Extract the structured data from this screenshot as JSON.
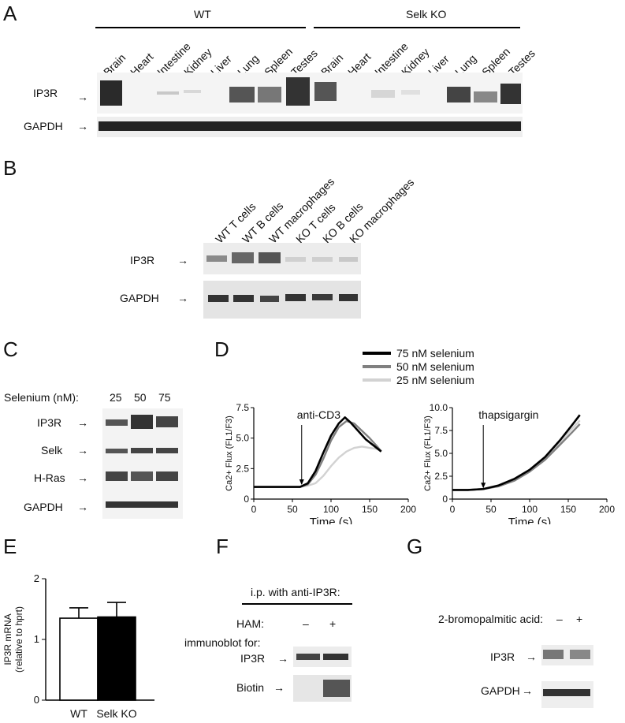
{
  "panels": {
    "a": "A",
    "b": "B",
    "c": "C",
    "d": "D",
    "e": "E",
    "f": "F",
    "g": "G"
  },
  "panel_a": {
    "group_wt": "WT",
    "group_ko": "Selk KO",
    "tissues_wt": [
      "Brain",
      "Heart",
      "Intestine",
      "Kidney",
      "Liver",
      "Lung",
      "Spleen",
      "Testes"
    ],
    "tissues_ko": [
      "Brain",
      "Heart",
      "Intestine",
      "Kidney",
      "Liver",
      "Lung",
      "Spleen",
      "Testes"
    ],
    "row1": "IP3R",
    "row2": "GAPDH"
  },
  "panel_b": {
    "lanes": [
      "WT T cells",
      "WT B cells",
      "WT macrophages",
      "KO T cells",
      "KO B cells",
      "KO macrophages"
    ],
    "row1": "IP3R",
    "row2": "GAPDH"
  },
  "panel_c": {
    "selenium_label": "Selenium (nM):",
    "conc": [
      "25",
      "50",
      "75"
    ],
    "rows": [
      "IP3R",
      "Selk",
      "H-Ras",
      "GAPDH"
    ]
  },
  "panel_d": {
    "legend": [
      "75 nM selenium",
      "50 nM selenium",
      "25 nM selenium"
    ],
    "colors": [
      "#000000",
      "#808080",
      "#d2d2d2"
    ],
    "left_annotation": "anti-CD3",
    "right_annotation": "thapsigargin",
    "ylabel": "Ca2+ Flux (FL1/F3)",
    "xlabel": "Time (s)",
    "left_yticks": [
      "0",
      "2.5",
      "5.0",
      "7.5"
    ],
    "right_yticks": [
      "0",
      "2.5",
      "5.0",
      "7.5",
      "10.0"
    ],
    "xticks": [
      "0",
      "50",
      "100",
      "150",
      "200"
    ]
  },
  "panel_e": {
    "ylabel_1": "IP3R mRNA",
    "ylabel_2": "(relative to hprt)",
    "yticks": [
      "0",
      "1",
      "2"
    ],
    "categories": [
      "WT",
      "Selk KO"
    ]
  },
  "panel_f": {
    "header": "i.p. with anti-IP3R:",
    "ham": "HAM:",
    "minus": "–",
    "plus": "+",
    "immunoblot": "immunoblot for:",
    "row1": "IP3R",
    "row2": "Biotin"
  },
  "panel_g": {
    "label": "2-bromopalmitic acid:",
    "minus": "–",
    "plus": "+",
    "row1": "IP3R",
    "row2": "GAPDH"
  },
  "chart_data": [
    {
      "type": "line",
      "panel": "D-left",
      "xlabel": "Time (s)",
      "ylabel": "Ca2+ Flux (FL1/F3)",
      "xlim": [
        0,
        200
      ],
      "ylim": [
        0,
        7.5
      ],
      "series": [
        {
          "name": "75 nM selenium",
          "x": [
            0,
            20,
            40,
            60,
            70,
            80,
            90,
            100,
            110,
            118,
            125,
            135,
            145,
            155,
            165
          ],
          "y": [
            1.0,
            1.0,
            1.0,
            1.0,
            1.3,
            2.3,
            3.8,
            5.2,
            6.2,
            6.7,
            6.3,
            5.6,
            4.9,
            4.4,
            3.9
          ]
        },
        {
          "name": "50 nM selenium",
          "x": [
            0,
            20,
            40,
            60,
            70,
            80,
            90,
            100,
            110,
            120,
            130,
            140,
            150,
            160,
            165
          ],
          "y": [
            1.0,
            1.0,
            1.0,
            1.0,
            1.2,
            2.0,
            3.3,
            4.8,
            5.9,
            6.4,
            6.2,
            5.6,
            5.0,
            4.3,
            3.9
          ]
        },
        {
          "name": "25 nM selenium",
          "x": [
            0,
            20,
            40,
            60,
            70,
            80,
            90,
            100,
            110,
            120,
            130,
            140,
            150,
            160,
            165
          ],
          "y": [
            1.0,
            1.0,
            1.0,
            1.0,
            1.1,
            1.3,
            1.9,
            2.7,
            3.4,
            3.9,
            4.2,
            4.3,
            4.2,
            4.1,
            4.0
          ]
        }
      ]
    },
    {
      "type": "line",
      "panel": "D-right",
      "xlabel": "Time (s)",
      "ylabel": "Ca2+ Flux (FL1/F3)",
      "xlim": [
        0,
        200
      ],
      "ylim": [
        0,
        10
      ],
      "series": [
        {
          "name": "75 nM selenium",
          "x": [
            0,
            20,
            40,
            60,
            80,
            100,
            120,
            140,
            155,
            165
          ],
          "y": [
            1.0,
            1.0,
            1.1,
            1.5,
            2.2,
            3.2,
            4.6,
            6.5,
            8.1,
            9.2
          ]
        },
        {
          "name": "50 nM selenium",
          "x": [
            0,
            20,
            40,
            60,
            80,
            100,
            120,
            140,
            155,
            165
          ],
          "y": [
            1.0,
            1.0,
            1.1,
            1.4,
            2.0,
            3.0,
            4.3,
            6.0,
            7.3,
            8.2
          ]
        },
        {
          "name": "25 nM selenium",
          "x": [
            0,
            20,
            40,
            60,
            80,
            100,
            120,
            140,
            155,
            165
          ],
          "y": [
            1.0,
            1.0,
            1.1,
            1.5,
            2.1,
            3.1,
            4.5,
            6.3,
            7.7,
            8.6
          ]
        }
      ]
    },
    {
      "type": "bar",
      "panel": "E",
      "categories": [
        "WT",
        "Selk KO"
      ],
      "values": [
        1.35,
        1.37
      ],
      "errors": [
        0.17,
        0.24
      ],
      "colors": [
        "#ffffff",
        "#000000"
      ],
      "ylabel": "IP3R mRNA (relative to hprt)",
      "ylim": [
        0,
        2
      ]
    }
  ]
}
